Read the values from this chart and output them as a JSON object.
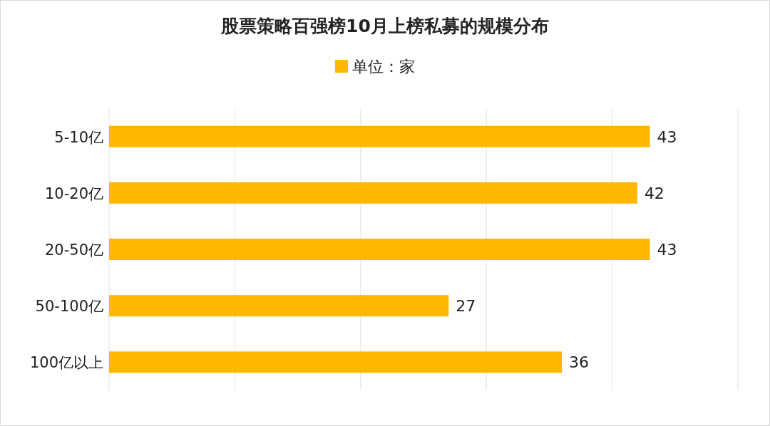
{
  "chart_data": {
    "type": "bar",
    "orientation": "horizontal",
    "title": "股票策略百强榜10月上榜私募的规模分布",
    "categories": [
      "5-10亿",
      "10-20亿",
      "20-50亿",
      "50-100亿",
      "100亿以上"
    ],
    "series": [
      {
        "name": "单位：家",
        "color": "#ffb800",
        "values": [
          43,
          42,
          43,
          27,
          36
        ]
      }
    ],
    "xlim": [
      0,
      50
    ],
    "xticks": [
      {
        "value": 0,
        "label": null
      },
      {
        "value": 10,
        "label": null
      },
      {
        "value": 20,
        "label": null
      },
      {
        "value": 30,
        "label": null
      },
      {
        "value": 40,
        "label": null
      },
      {
        "value": 50,
        "label": null
      }
    ],
    "tick_labels": "y",
    "grid": "x",
    "legend": "top",
    "data_labels": true
  }
}
